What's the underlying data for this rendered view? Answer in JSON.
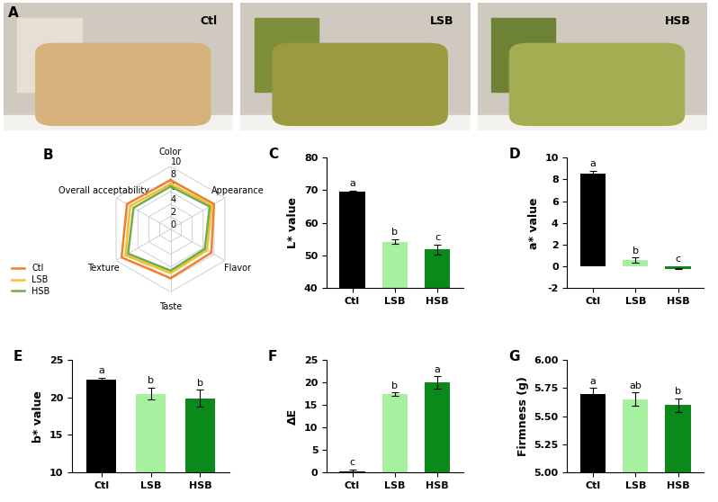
{
  "chart_data": [
    {
      "type": "image",
      "panel": "A",
      "labels": [
        "Ctl",
        "LSB",
        "HSB"
      ],
      "colors": [
        "#d6b27c",
        "#9c9a3e",
        "#a3ad52"
      ]
    },
    {
      "type": "radar",
      "panel": "B",
      "categories": [
        "Color",
        "Appearance",
        "Flavor",
        "Taste",
        "Texture",
        "Overall acceptability"
      ],
      "ylim": [
        0,
        10
      ],
      "yticks": [
        0,
        2,
        4,
        6,
        8,
        10
      ],
      "legend": "lower left",
      "series": [
        {
          "name": "Ctl",
          "color": "#f08030",
          "values": [
            7.8,
            8.0,
            7.5,
            7.8,
            9.0,
            8.0
          ]
        },
        {
          "name": "LSB",
          "color": "#f5c030",
          "values": [
            7.2,
            7.6,
            6.7,
            7.0,
            8.3,
            7.4
          ]
        },
        {
          "name": "HSB",
          "color": "#70ad47",
          "values": [
            6.8,
            7.2,
            6.3,
            6.6,
            7.8,
            6.8
          ]
        }
      ]
    },
    {
      "type": "bar",
      "panel": "C",
      "y_label": "L* value",
      "categories": [
        "Ctl",
        "LSB",
        "HSB"
      ],
      "values": [
        69.5,
        54.2,
        51.8
      ],
      "errors": [
        0.4,
        0.7,
        1.5
      ],
      "letters": [
        "a",
        "b",
        "c"
      ],
      "colors": [
        "#000000",
        "#a6f0a0",
        "#0a8a1a"
      ],
      "ylim": [
        40,
        80
      ],
      "yticks": [
        40,
        50,
        60,
        70,
        80
      ]
    },
    {
      "type": "bar",
      "panel": "D",
      "y_label": "a* value",
      "categories": [
        "Ctl",
        "LSB",
        "HSB"
      ],
      "values": [
        8.5,
        0.55,
        -0.2
      ],
      "errors": [
        0.3,
        0.25,
        0.05
      ],
      "letters": [
        "a",
        "b",
        "c"
      ],
      "colors": [
        "#000000",
        "#a6f0a0",
        "#0a8a1a"
      ],
      "ylim": [
        -2,
        10
      ],
      "yticks": [
        -2,
        0,
        2,
        4,
        6,
        8,
        10
      ]
    },
    {
      "type": "bar",
      "panel": "E",
      "y_label": "b* value",
      "categories": [
        "Ctl",
        "LSB",
        "HSB"
      ],
      "values": [
        22.4,
        20.5,
        19.9
      ],
      "errors": [
        0.25,
        0.8,
        1.1
      ],
      "letters": [
        "a",
        "b",
        "b"
      ],
      "colors": [
        "#000000",
        "#a6f0a0",
        "#0a8a1a"
      ],
      "ylim": [
        10,
        25
      ],
      "yticks": [
        10,
        15,
        20,
        25
      ]
    },
    {
      "type": "bar",
      "panel": "F",
      "y_label": "ΔE",
      "categories": [
        "Ctl",
        "LSB",
        "HSB"
      ],
      "values": [
        0.2,
        17.4,
        20.0
      ],
      "errors": [
        0.5,
        0.4,
        1.4
      ],
      "letters": [
        "c",
        "b",
        "a"
      ],
      "colors": [
        "#000000",
        "#a6f0a0",
        "#0a8a1a"
      ],
      "ylim": [
        0,
        25
      ],
      "yticks": [
        0,
        5,
        10,
        15,
        20,
        25
      ]
    },
    {
      "type": "bar",
      "panel": "G",
      "y_label": "Firmness (g)",
      "categories": [
        "Ctl",
        "LSB",
        "HSB"
      ],
      "values": [
        5.7,
        5.65,
        5.6
      ],
      "errors": [
        0.05,
        0.06,
        0.06
      ],
      "letters": [
        "a",
        "ab",
        "b"
      ],
      "colors": [
        "#000000",
        "#a6f0a0",
        "#0a8a1a"
      ],
      "ylim": [
        5,
        6
      ],
      "yticks": [
        {
          "value": 5,
          "label": "5.00"
        },
        {
          "value": 5.25,
          "label": "5.25"
        },
        {
          "value": 5.5,
          "label": "5.50"
        },
        {
          "value": 5.75,
          "label": "5.75"
        },
        {
          "value": 6,
          "label": "6.00"
        }
      ]
    }
  ]
}
